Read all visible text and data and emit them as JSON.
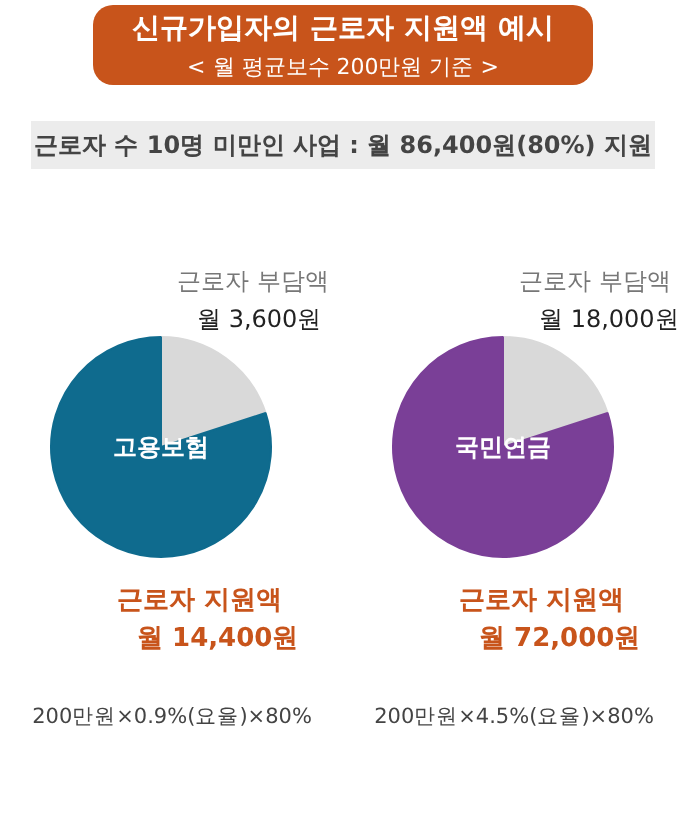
{
  "chart_data": [
    {
      "type": "other",
      "title": "신규가입자의 근로자 지원액 예시",
      "subtitle": "< 월 평균보수 200만원 기준 >",
      "annotations": [
        "근로자 수 10명 미만인 사업 : 월 86,400원(80%) 지원"
      ]
    },
    {
      "type": "pie",
      "title": "고용보험",
      "categories": [
        "근로자 부담액",
        "근로자 지원액"
      ],
      "values": [
        3600,
        14400
      ],
      "colors": [
        "#d9d9d9",
        "#0f6b8e"
      ],
      "value_labels": [
        "월 3,600원",
        "월 14,400원"
      ],
      "annotations": [
        "200만원×0.9%(요율)×80%"
      ]
    },
    {
      "type": "pie",
      "title": "국민연금",
      "categories": [
        "근로자 부담액",
        "근로자 지원액"
      ],
      "values": [
        18000,
        72000
      ],
      "colors": [
        "#d9d9d9",
        "#7a3f97"
      ],
      "value_labels": [
        "월 18,000원",
        "월 72,000원"
      ],
      "annotations": [
        "200만원×4.5%(요율)×80%"
      ]
    }
  ]
}
